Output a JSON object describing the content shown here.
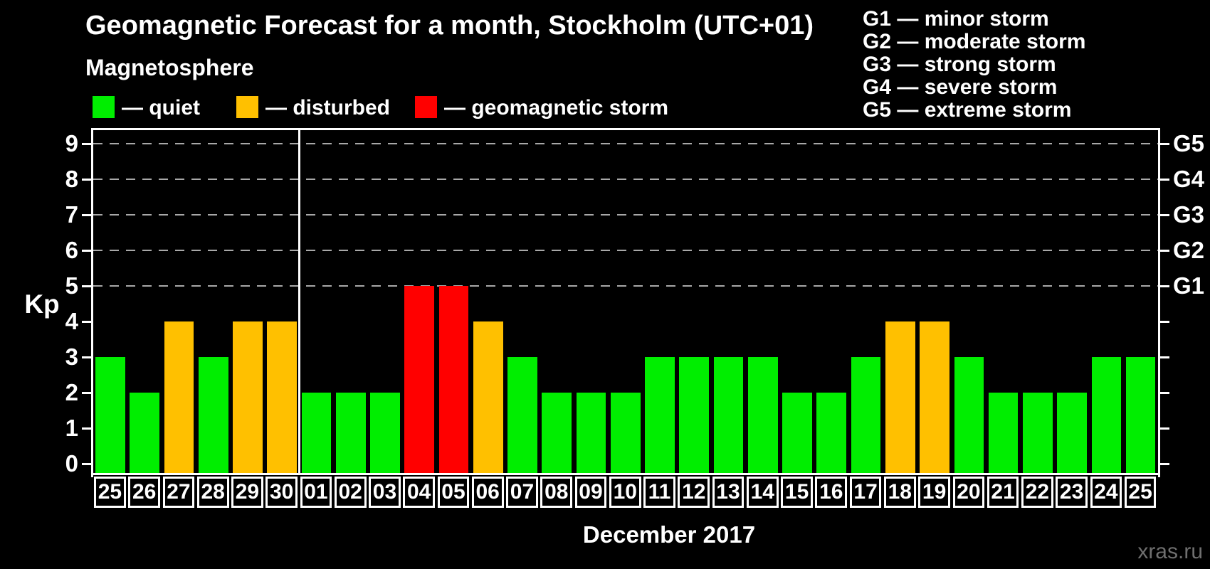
{
  "title": "Geomagnetic Forecast for a month, Stockholm (UTC+01)",
  "subtitle": "Magnetosphere",
  "legend": {
    "quiet": {
      "label": "— quiet",
      "color": "#00EE00"
    },
    "disturbed": {
      "label": "— disturbed",
      "color": "#FFC000"
    },
    "storm": {
      "label": "— geomagnetic storm",
      "color": "#FF0000"
    }
  },
  "g_scale": [
    "G1 — minor storm",
    "G2 — moderate storm",
    "G3 — strong storm",
    "G4 — severe storm",
    "G5 — extreme storm"
  ],
  "watermark": "xras.ru",
  "chart_data": {
    "type": "bar",
    "title": "Geomagnetic Forecast for a month, Stockholm (UTC+01)",
    "subtitle": "Magnetosphere",
    "ylabel": "Kp",
    "xlabel": "December 2017",
    "y_ticks": [
      0,
      1,
      2,
      3,
      4,
      5,
      6,
      7,
      8,
      9
    ],
    "ylim": [
      -0.32,
      9.7
    ],
    "grid_at_kp": [
      5,
      6,
      7,
      8,
      9
    ],
    "right_axis": [
      {
        "kp": 5,
        "label": "G1"
      },
      {
        "kp": 6,
        "label": "G2"
      },
      {
        "kp": 7,
        "label": "G3"
      },
      {
        "kp": 8,
        "label": "G4"
      },
      {
        "kp": 9,
        "label": "G5"
      }
    ],
    "separator_before_day": "01",
    "bars": [
      {
        "day": "25",
        "kp": 3,
        "status": "quiet"
      },
      {
        "day": "26",
        "kp": 2,
        "status": "quiet"
      },
      {
        "day": "27",
        "kp": 4,
        "status": "disturbed"
      },
      {
        "day": "28",
        "kp": 3,
        "status": "quiet"
      },
      {
        "day": "29",
        "kp": 4,
        "status": "disturbed"
      },
      {
        "day": "30",
        "kp": 4,
        "status": "disturbed"
      },
      {
        "day": "01",
        "kp": 2,
        "status": "quiet"
      },
      {
        "day": "02",
        "kp": 2,
        "status": "quiet"
      },
      {
        "day": "03",
        "kp": 2,
        "status": "quiet"
      },
      {
        "day": "04",
        "kp": 5,
        "status": "storm"
      },
      {
        "day": "05",
        "kp": 5,
        "status": "storm"
      },
      {
        "day": "06",
        "kp": 4,
        "status": "disturbed"
      },
      {
        "day": "07",
        "kp": 3,
        "status": "quiet"
      },
      {
        "day": "08",
        "kp": 2,
        "status": "quiet"
      },
      {
        "day": "09",
        "kp": 2,
        "status": "quiet"
      },
      {
        "day": "10",
        "kp": 2,
        "status": "quiet"
      },
      {
        "day": "11",
        "kp": 3,
        "status": "quiet"
      },
      {
        "day": "12",
        "kp": 3,
        "status": "quiet"
      },
      {
        "day": "13",
        "kp": 3,
        "status": "quiet"
      },
      {
        "day": "14",
        "kp": 3,
        "status": "quiet"
      },
      {
        "day": "15",
        "kp": 2,
        "status": "quiet"
      },
      {
        "day": "16",
        "kp": 2,
        "status": "quiet"
      },
      {
        "day": "17",
        "kp": 3,
        "status": "quiet"
      },
      {
        "day": "18",
        "kp": 4,
        "status": "disturbed"
      },
      {
        "day": "19",
        "kp": 4,
        "status": "disturbed"
      },
      {
        "day": "20",
        "kp": 3,
        "status": "quiet"
      },
      {
        "day": "21",
        "kp": 2,
        "status": "quiet"
      },
      {
        "day": "22",
        "kp": 2,
        "status": "quiet"
      },
      {
        "day": "23",
        "kp": 2,
        "status": "quiet"
      },
      {
        "day": "24",
        "kp": 3,
        "status": "quiet"
      },
      {
        "day": "25",
        "kp": 3,
        "status": "quiet"
      }
    ]
  }
}
